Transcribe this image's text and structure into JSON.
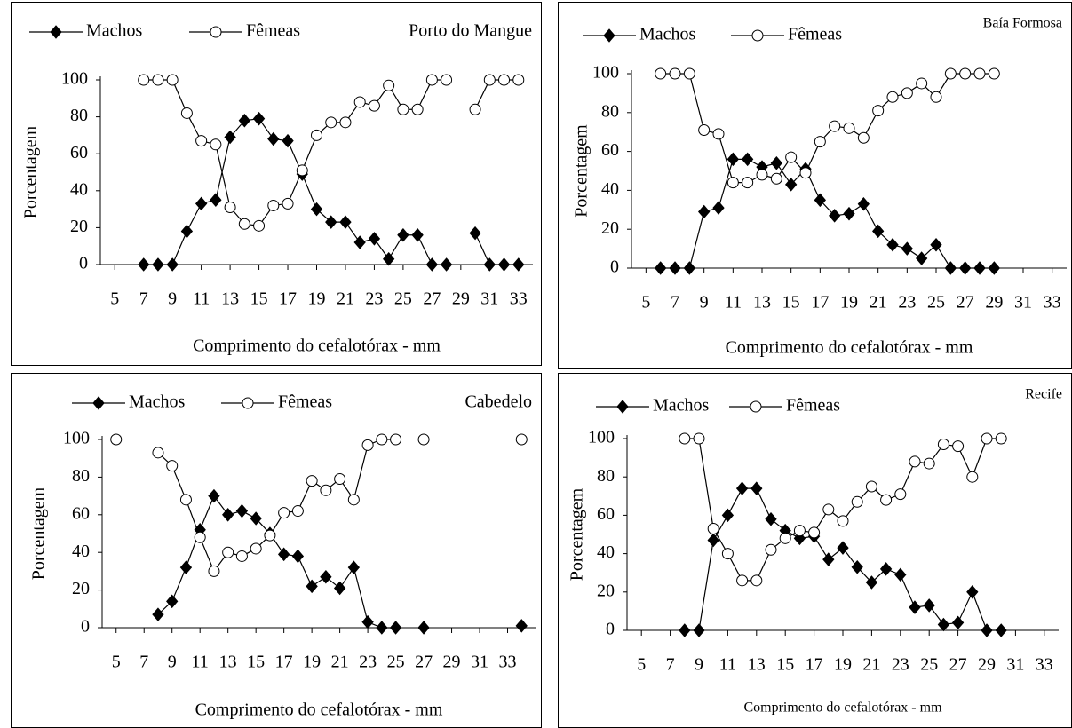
{
  "chart_data": [
    {
      "type": "line",
      "title": "Porto do Mangue",
      "xlabel": "Comprimento do cefalotórax - mm",
      "ylabel": "Porcentagem",
      "x": [
        7,
        8,
        9,
        10,
        11,
        12,
        13,
        14,
        15,
        16,
        17,
        18,
        19,
        20,
        21,
        22,
        23,
        24,
        25,
        26,
        27,
        28,
        29,
        30,
        31,
        32,
        33
      ],
      "series": [
        {
          "name": "Machos",
          "color": "#000000",
          "marker": "diamond",
          "values": [
            0,
            0,
            0,
            18,
            33,
            35,
            69,
            78,
            79,
            68,
            67,
            49,
            30,
            23,
            23,
            12,
            14,
            3,
            16,
            16,
            0,
            0,
            null,
            17,
            0,
            0,
            0
          ]
        },
        {
          "name": "Fêmeas",
          "color": "#000000",
          "marker": "circle",
          "values": [
            100,
            100,
            100,
            82,
            67,
            65,
            31,
            22,
            21,
            32,
            33,
            51,
            70,
            77,
            77,
            88,
            86,
            97,
            84,
            84,
            100,
            100,
            null,
            84,
            100,
            100,
            100
          ]
        }
      ],
      "xlim": [
        4,
        34
      ],
      "xticks": [
        5,
        7,
        9,
        11,
        13,
        15,
        17,
        19,
        21,
        23,
        25,
        27,
        29,
        31,
        33
      ],
      "ylim": [
        0,
        100
      ],
      "yticks": [
        0,
        20,
        40,
        60,
        80,
        100
      ]
    },
    {
      "type": "line",
      "title": "Baía Formosa",
      "xlabel": "Comprimento do cefalotórax - mm",
      "ylabel": "Porcentagem",
      "x": [
        6,
        7,
        8,
        9,
        10,
        11,
        12,
        13,
        14,
        15,
        16,
        17,
        18,
        19,
        20,
        21,
        22,
        23,
        24,
        25,
        26,
        27,
        28,
        29
      ],
      "series": [
        {
          "name": "Machos",
          "color": "#000000",
          "marker": "diamond",
          "values": [
            0,
            0,
            0,
            29,
            31,
            56,
            56,
            52,
            54,
            43,
            51,
            35,
            27,
            28,
            33,
            19,
            12,
            10,
            5,
            12,
            0,
            0,
            0,
            0
          ]
        },
        {
          "name": "Fêmeas",
          "color": "#000000",
          "marker": "circle",
          "values": [
            100,
            100,
            100,
            71,
            69,
            44,
            44,
            48,
            46,
            57,
            49,
            65,
            73,
            72,
            67,
            81,
            88,
            90,
            95,
            88,
            100,
            100,
            100,
            100
          ]
        }
      ],
      "xlim": [
        4,
        34
      ],
      "xticks": [
        5,
        7,
        9,
        11,
        13,
        15,
        17,
        19,
        21,
        23,
        25,
        27,
        29,
        31,
        33
      ],
      "ylim": [
        0,
        100
      ],
      "yticks": [
        0,
        20,
        40,
        60,
        80,
        100
      ]
    },
    {
      "type": "line",
      "title": "Cabedelo",
      "xlabel": "Comprimento do cefalotórax - mm",
      "ylabel": "Porcentagem",
      "x": [
        5,
        6,
        7,
        8,
        9,
        10,
        11,
        12,
        13,
        14,
        15,
        16,
        17,
        18,
        19,
        20,
        21,
        22,
        23,
        24,
        25,
        26,
        27,
        28,
        29,
        30,
        31,
        32,
        33,
        34
      ],
      "series": [
        {
          "name": "Machos",
          "color": "#000000",
          "marker": "diamond",
          "values": [
            null,
            null,
            null,
            7,
            14,
            32,
            52,
            70,
            60,
            62,
            58,
            50,
            39,
            38,
            22,
            27,
            21,
            32,
            3,
            0,
            0,
            null,
            0,
            null,
            null,
            null,
            null,
            null,
            null,
            1
          ]
        },
        {
          "name": "Fêmeas",
          "color": "#000000",
          "marker": "circle",
          "values": [
            100,
            null,
            null,
            93,
            86,
            68,
            48,
            30,
            40,
            38,
            42,
            49,
            61,
            62,
            78,
            73,
            79,
            68,
            97,
            100,
            100,
            null,
            100,
            null,
            null,
            null,
            null,
            null,
            null,
            100
          ]
        }
      ],
      "xlim": [
        4,
        35
      ],
      "xticks": [
        5,
        7,
        9,
        11,
        13,
        15,
        17,
        19,
        21,
        23,
        25,
        27,
        29,
        31,
        33
      ],
      "ylim": [
        0,
        100
      ],
      "yticks": [
        0,
        20,
        40,
        60,
        80,
        100
      ]
    },
    {
      "type": "line",
      "title": "Recife",
      "xlabel": "Comprimento do cefalotórax - mm",
      "ylabel": "Porcentagem",
      "x": [
        8,
        9,
        10,
        11,
        12,
        13,
        14,
        15,
        16,
        17,
        18,
        19,
        20,
        21,
        22,
        23,
        24,
        25,
        26,
        27,
        28,
        29,
        30
      ],
      "series": [
        {
          "name": "Machos",
          "color": "#000000",
          "marker": "diamond",
          "values": [
            0,
            0,
            47,
            60,
            74,
            74,
            58,
            52,
            48,
            49,
            37,
            43,
            33,
            25,
            32,
            29,
            12,
            13,
            3,
            4,
            20,
            0,
            0
          ]
        },
        {
          "name": "Fêmeas",
          "color": "#000000",
          "marker": "circle",
          "values": [
            100,
            100,
            53,
            40,
            26,
            26,
            42,
            48,
            52,
            51,
            63,
            57,
            67,
            75,
            68,
            71,
            88,
            87,
            97,
            96,
            80,
            100,
            100
          ]
        }
      ],
      "xlim": [
        4,
        34
      ],
      "xticks": [
        5,
        7,
        9,
        11,
        13,
        15,
        17,
        19,
        21,
        23,
        25,
        27,
        29,
        31,
        33
      ],
      "ylim": [
        0,
        100
      ],
      "yticks": [
        0,
        20,
        40,
        60,
        80,
        100
      ]
    }
  ]
}
